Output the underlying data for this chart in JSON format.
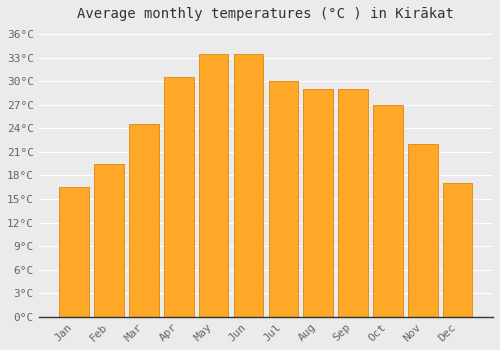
{
  "months": [
    "Jan",
    "Feb",
    "Mar",
    "Apr",
    "May",
    "Jun",
    "Jul",
    "Aug",
    "Sep",
    "Oct",
    "Nov",
    "Dec"
  ],
  "temperatures": [
    16.5,
    19.5,
    24.5,
    30.5,
    33.5,
    33.5,
    30.0,
    29.0,
    29.0,
    27.0,
    22.0,
    17.0
  ],
  "bar_color": "#FFA726",
  "bar_edge_color": "#E09020",
  "title": "Average monthly temperatures (°C ) in Kirākat",
  "ylim": [
    0,
    37
  ],
  "yticks": [
    0,
    3,
    6,
    9,
    12,
    15,
    18,
    21,
    24,
    27,
    30,
    33,
    36
  ],
  "ytick_labels": [
    "0°C",
    "3°C",
    "6°C",
    "9°C",
    "12°C",
    "15°C",
    "18°C",
    "21°C",
    "24°C",
    "27°C",
    "30°C",
    "33°C",
    "36°C"
  ],
  "background_color": "#ebebeb",
  "grid_color": "#ffffff",
  "title_fontsize": 10,
  "tick_fontsize": 8,
  "bar_width": 0.85
}
